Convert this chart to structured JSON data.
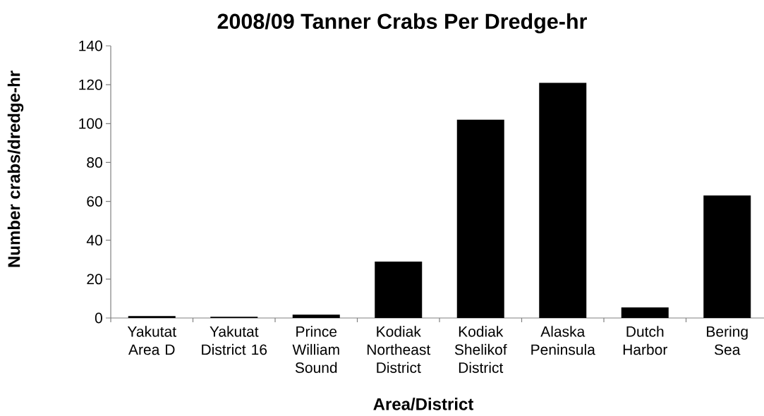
{
  "chart_data": {
    "type": "bar",
    "title": "2008/09 Tanner Crabs Per Dredge-hr",
    "xlabel": "Area/District",
    "ylabel": "Number crabs/dredge-hr",
    "categories": [
      "Yakutat Area D",
      "Yakutat District 16",
      "Prince William Sound",
      "Kodiak Northeast District",
      "Kodiak Shelikof District",
      "Alaska Peninsula",
      "Dutch Harbor",
      "Bering Sea"
    ],
    "values": [
      1,
      0.6,
      1.7,
      29,
      102,
      121,
      5.4,
      63
    ],
    "color": "#000000",
    "ylim": [
      0,
      140
    ],
    "yticks": [
      0,
      20,
      40,
      60,
      80,
      100,
      120,
      140
    ]
  }
}
